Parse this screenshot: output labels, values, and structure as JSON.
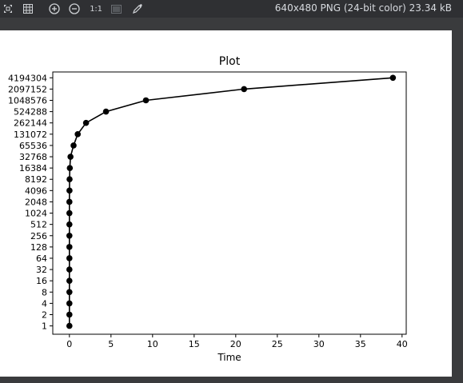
{
  "toolbar": {
    "icons": [
      {
        "name": "fit-to-window-icon"
      },
      {
        "name": "grid-icon"
      },
      {
        "name": "zoom-in-icon"
      },
      {
        "name": "zoom-out-icon"
      },
      {
        "name": "actual-size-icon",
        "label": "1:1"
      },
      {
        "name": "background-icon"
      },
      {
        "name": "color-picker-icon"
      }
    ],
    "image_info": "640x480 PNG (24-bit color) 23.34 kB"
  },
  "chart_data": {
    "type": "line",
    "title": "Plot",
    "xlabel": "Time",
    "ylabel": "",
    "y_scale": "log2",
    "xlim": [
      -2,
      40.5
    ],
    "ylim": [
      0.6,
      6000000
    ],
    "x_ticks": [
      "0",
      "5",
      "10",
      "15",
      "20",
      "25",
      "30",
      "35",
      "40"
    ],
    "y_ticks": [
      "1",
      "2",
      "4",
      "8",
      "16",
      "32",
      "64",
      "128",
      "256",
      "512",
      "1024",
      "2048",
      "4096",
      "8192",
      "16384",
      "32768",
      "65536",
      "131072",
      "262144",
      "524288",
      "1048576",
      "2097152",
      "4194304"
    ],
    "series": [
      {
        "marker": "circle",
        "color": "#000000",
        "points": [
          {
            "x": 0,
            "y": 1
          },
          {
            "x": 0,
            "y": 2
          },
          {
            "x": 0,
            "y": 4
          },
          {
            "x": 0,
            "y": 8
          },
          {
            "x": 0,
            "y": 16
          },
          {
            "x": 0,
            "y": 32
          },
          {
            "x": 0,
            "y": 64
          },
          {
            "x": 0,
            "y": 128
          },
          {
            "x": 0,
            "y": 256
          },
          {
            "x": 0,
            "y": 512
          },
          {
            "x": 0,
            "y": 1024
          },
          {
            "x": 0,
            "y": 2048
          },
          {
            "x": 0.01,
            "y": 4096
          },
          {
            "x": 0.02,
            "y": 8192
          },
          {
            "x": 0.05,
            "y": 16384
          },
          {
            "x": 0.13,
            "y": 32768
          },
          {
            "x": 0.5,
            "y": 65536
          },
          {
            "x": 1.0,
            "y": 131072
          },
          {
            "x": 2.0,
            "y": 262144
          },
          {
            "x": 4.4,
            "y": 524288
          },
          {
            "x": 9.2,
            "y": 1048576
          },
          {
            "x": 21.0,
            "y": 2097152
          },
          {
            "x": 38.9,
            "y": 4194304
          }
        ]
      }
    ]
  }
}
